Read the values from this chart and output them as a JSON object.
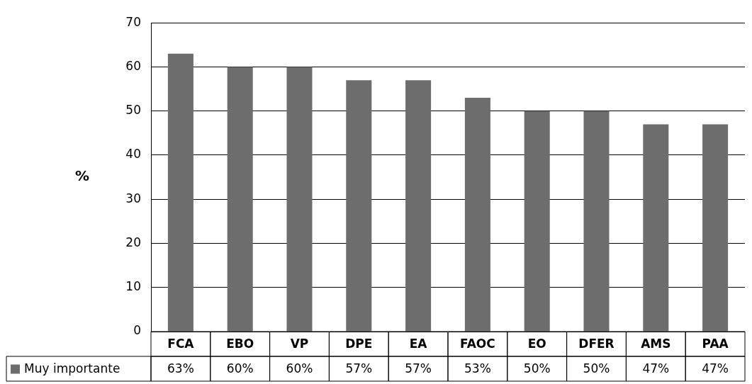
{
  "chart_data": {
    "type": "bar",
    "ylabel": "%",
    "categories": [
      "FCA",
      "EBO",
      "VP",
      "DPE",
      "EA",
      "FAOC",
      "EO",
      "DFER",
      "AMS",
      "PAA"
    ],
    "series": [
      {
        "name": "Muy importante",
        "color": "#6d6d6e",
        "values": [
          63,
          60,
          60,
          57,
          57,
          53,
          50,
          50,
          47,
          47
        ],
        "value_labels": [
          "63%",
          "60%",
          "60%",
          "57%",
          "57%",
          "53%",
          "50%",
          "50%",
          "47%",
          "47%"
        ]
      }
    ],
    "ylim": [
      0,
      70
    ],
    "yticks": [
      0,
      10,
      20,
      30,
      40,
      50,
      60,
      70
    ],
    "grid": "y",
    "legend": "bottom"
  }
}
